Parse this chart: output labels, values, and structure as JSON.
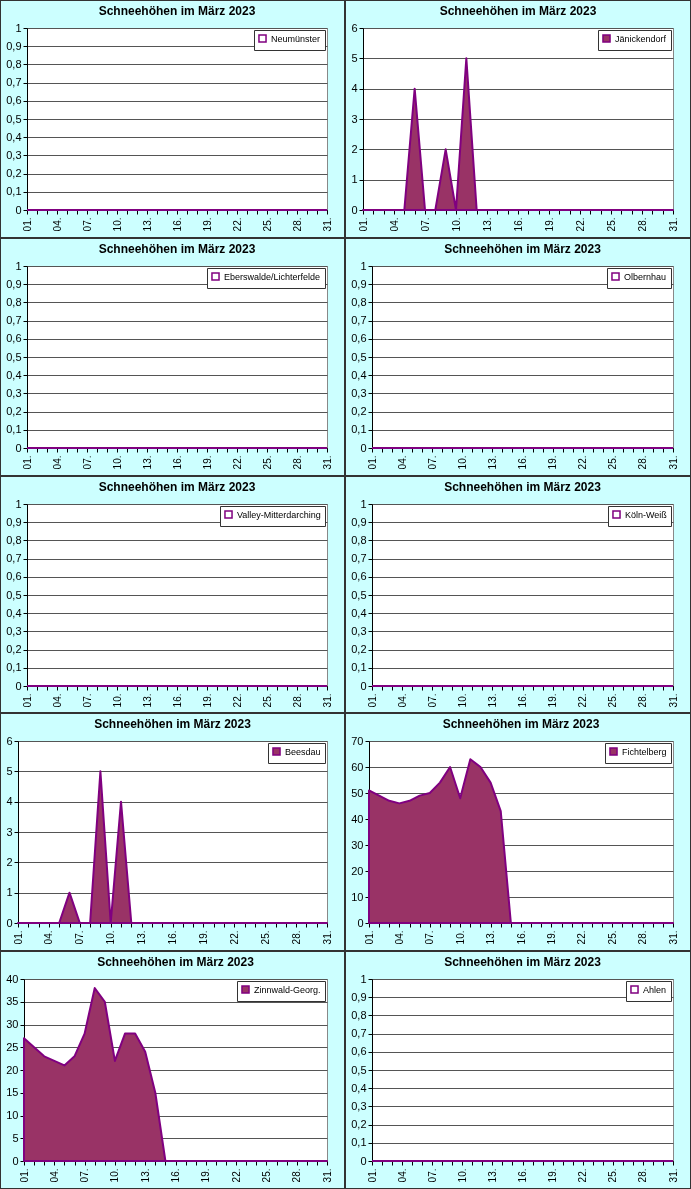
{
  "chart_data": [
    {
      "type": "line",
      "title": "Schneehöhen im März 2023",
      "categories": [
        "01.",
        null,
        null,
        "04.",
        null,
        null,
        "07.",
        null,
        null,
        "10.",
        null,
        null,
        "13.",
        null,
        null,
        "16.",
        null,
        null,
        "19.",
        null,
        null,
        "22.",
        null,
        null,
        "25.",
        null,
        null,
        "28.",
        null,
        null,
        "31."
      ],
      "series": [
        {
          "name": "Neumünster",
          "color": "#800080",
          "values": [
            0,
            0,
            0,
            0,
            0,
            0,
            0,
            0,
            0,
            0,
            0,
            0,
            0,
            0,
            0,
            0,
            0,
            0,
            0,
            0,
            0,
            0,
            0,
            0,
            0,
            0,
            0,
            0,
            0,
            0,
            0
          ]
        }
      ],
      "ylim": [
        0,
        1
      ],
      "yticks": [
        0,
        {
          "value": 0.1,
          "label": "0,1"
        },
        {
          "value": 0.2,
          "label": "0,2"
        },
        {
          "value": 0.3,
          "label": "0,3"
        },
        {
          "value": 0.4,
          "label": "0,4"
        },
        {
          "value": 0.5,
          "label": "0,5"
        },
        {
          "value": 0.6,
          "label": "0,6"
        },
        {
          "value": 0.7,
          "label": "0,7"
        },
        {
          "value": 0.8,
          "label": "0,8"
        },
        {
          "value": 0.9,
          "label": "0,9"
        },
        1
      ],
      "grid": "y",
      "legend": "top right"
    },
    {
      "type": "area",
      "title": "Schneehöhen im März 2023",
      "categories": [
        "01.",
        null,
        null,
        "04.",
        null,
        null,
        "07.",
        null,
        null,
        "10.",
        null,
        null,
        "13.",
        null,
        null,
        "16.",
        null,
        null,
        "19.",
        null,
        null,
        "22.",
        null,
        null,
        "25.",
        null,
        null,
        "28.",
        null,
        null,
        "31."
      ],
      "series": [
        {
          "name": "Jänickendorf",
          "color": "#993366",
          "values": [
            0,
            0,
            0,
            0,
            0,
            4,
            0,
            0,
            2,
            0,
            5,
            0,
            0,
            0,
            0,
            0,
            0,
            0,
            0,
            0,
            0,
            0,
            0,
            0,
            0,
            0,
            0,
            0,
            0,
            0,
            0
          ]
        }
      ],
      "ylim": [
        0,
        6
      ],
      "yticks": [
        0,
        1,
        2,
        3,
        4,
        5,
        6
      ],
      "grid": "y",
      "legend": "top right"
    },
    {
      "type": "line",
      "title": "Schneehöhen im März 2023",
      "categories": [
        "01.",
        null,
        null,
        "04.",
        null,
        null,
        "07.",
        null,
        null,
        "10.",
        null,
        null,
        "13.",
        null,
        null,
        "16.",
        null,
        null,
        "19.",
        null,
        null,
        "22.",
        null,
        null,
        "25.",
        null,
        null,
        "28.",
        null,
        null,
        "31."
      ],
      "series": [
        {
          "name": "Eberswalde/Lichterfelde",
          "color": "#800080",
          "values": [
            0,
            0,
            0,
            0,
            0,
            0,
            0,
            0,
            0,
            0,
            0,
            0,
            0,
            0,
            0,
            0,
            0,
            0,
            0,
            0,
            0,
            0,
            0,
            0,
            0,
            0,
            0,
            0,
            0,
            0,
            0
          ]
        }
      ],
      "ylim": [
        0,
        1
      ],
      "yticks": [
        0,
        {
          "value": 0.1,
          "label": "0,1"
        },
        {
          "value": 0.2,
          "label": "0,2"
        },
        {
          "value": 0.3,
          "label": "0,3"
        },
        {
          "value": 0.4,
          "label": "0,4"
        },
        {
          "value": 0.5,
          "label": "0,5"
        },
        {
          "value": 0.6,
          "label": "0,6"
        },
        {
          "value": 0.7,
          "label": "0,7"
        },
        {
          "value": 0.8,
          "label": "0,8"
        },
        {
          "value": 0.9,
          "label": "0,9"
        },
        1
      ],
      "grid": "y",
      "legend": "top right"
    },
    {
      "type": "line",
      "title": "Schneehöhen im März 2023",
      "categories": [
        "01.",
        null,
        null,
        "04.",
        null,
        null,
        "07.",
        null,
        null,
        "10.",
        null,
        null,
        "13.",
        null,
        null,
        "16.",
        null,
        null,
        "19.",
        null,
        null,
        "22.",
        null,
        null,
        "25.",
        null,
        null,
        "28.",
        null,
        null,
        "31."
      ],
      "series": [
        {
          "name": "Olbernhau",
          "color": "#800080",
          "values": [
            0,
            0,
            0,
            0,
            0,
            0,
            0,
            0,
            0,
            0,
            0,
            0,
            0,
            0,
            0,
            0,
            0,
            0,
            0,
            0,
            0,
            0,
            0,
            0,
            0,
            0,
            0,
            0,
            0,
            0,
            0
          ]
        }
      ],
      "ylim": [
        0,
        1
      ],
      "yticks": [
        0,
        {
          "value": 0.1,
          "label": "0,1"
        },
        {
          "value": 0.2,
          "label": "0,2"
        },
        {
          "value": 0.3,
          "label": "0,3"
        },
        {
          "value": 0.4,
          "label": "0,4"
        },
        {
          "value": 0.5,
          "label": "0,5"
        },
        {
          "value": 0.6,
          "label": "0,6"
        },
        {
          "value": 0.7,
          "label": "0,7"
        },
        {
          "value": 0.8,
          "label": "0,8"
        },
        {
          "value": 0.9,
          "label": "0,9"
        },
        1
      ],
      "grid": "y",
      "legend": "top right"
    },
    {
      "type": "line",
      "title": "Schneehöhen im März 2023",
      "categories": [
        "01.",
        null,
        null,
        "04.",
        null,
        null,
        "07.",
        null,
        null,
        "10.",
        null,
        null,
        "13.",
        null,
        null,
        "16.",
        null,
        null,
        "19.",
        null,
        null,
        "22.",
        null,
        null,
        "25.",
        null,
        null,
        "28.",
        null,
        null,
        "31."
      ],
      "series": [
        {
          "name": "Valley-Mitterdarching",
          "color": "#800080",
          "values": [
            0,
            0,
            0,
            0,
            0,
            0,
            0,
            0,
            0,
            0,
            0,
            0,
            0,
            0,
            0,
            0,
            0,
            0,
            0,
            0,
            0,
            0,
            0,
            0,
            0,
            0,
            0,
            0,
            0,
            0,
            0
          ]
        }
      ],
      "ylim": [
        0,
        1
      ],
      "yticks": [
        0,
        {
          "value": 0.1,
          "label": "0,1"
        },
        {
          "value": 0.2,
          "label": "0,2"
        },
        {
          "value": 0.3,
          "label": "0,3"
        },
        {
          "value": 0.4,
          "label": "0,4"
        },
        {
          "value": 0.5,
          "label": "0,5"
        },
        {
          "value": 0.6,
          "label": "0,6"
        },
        {
          "value": 0.7,
          "label": "0,7"
        },
        {
          "value": 0.8,
          "label": "0,8"
        },
        {
          "value": 0.9,
          "label": "0,9"
        },
        1
      ],
      "grid": "y",
      "legend": "top right"
    },
    {
      "type": "line",
      "title": "Schneehöhen im März 2023",
      "categories": [
        "01.",
        null,
        null,
        "04.",
        null,
        null,
        "07.",
        null,
        null,
        "10.",
        null,
        null,
        "13.",
        null,
        null,
        "16.",
        null,
        null,
        "19.",
        null,
        null,
        "22.",
        null,
        null,
        "25.",
        null,
        null,
        "28.",
        null,
        null,
        "31."
      ],
      "series": [
        {
          "name": "Köln-Weiß",
          "color": "#800080",
          "values": [
            0,
            0,
            0,
            0,
            0,
            0,
            0,
            0,
            0,
            0,
            0,
            0,
            0,
            0,
            0,
            0,
            0,
            0,
            0,
            0,
            0,
            0,
            0,
            0,
            0,
            0,
            0,
            0,
            0,
            0,
            0
          ]
        }
      ],
      "ylim": [
        0,
        1
      ],
      "yticks": [
        0,
        {
          "value": 0.1,
          "label": "0,1"
        },
        {
          "value": 0.2,
          "label": "0,2"
        },
        {
          "value": 0.3,
          "label": "0,3"
        },
        {
          "value": 0.4,
          "label": "0,4"
        },
        {
          "value": 0.5,
          "label": "0,5"
        },
        {
          "value": 0.6,
          "label": "0,6"
        },
        {
          "value": 0.7,
          "label": "0,7"
        },
        {
          "value": 0.8,
          "label": "0,8"
        },
        {
          "value": 0.9,
          "label": "0,9"
        },
        1
      ],
      "grid": "y",
      "legend": "top right"
    },
    {
      "type": "area",
      "title": "Schneehöhen im März 2023",
      "categories": [
        "01.",
        null,
        null,
        "04.",
        null,
        null,
        "07.",
        null,
        null,
        "10.",
        null,
        null,
        "13.",
        null,
        null,
        "16.",
        null,
        null,
        "19.",
        null,
        null,
        "22.",
        null,
        null,
        "25.",
        null,
        null,
        "28.",
        null,
        null,
        "31."
      ],
      "series": [
        {
          "name": "Beesdau",
          "color": "#993366",
          "values": [
            0,
            0,
            0,
            0,
            0,
            1,
            0,
            0,
            5,
            0,
            4,
            0,
            0,
            0,
            0,
            0,
            0,
            0,
            0,
            0,
            0,
            0,
            0,
            0,
            0,
            0,
            0,
            0,
            0,
            0,
            0
          ]
        }
      ],
      "ylim": [
        0,
        6
      ],
      "yticks": [
        0,
        1,
        2,
        3,
        4,
        5,
        6
      ],
      "grid": "y",
      "legend": "top right"
    },
    {
      "type": "area",
      "title": "Schneehöhen im März 2023",
      "categories": [
        "01.",
        null,
        null,
        "04.",
        null,
        null,
        "07.",
        null,
        null,
        "10.",
        null,
        null,
        "13.",
        null,
        null,
        "16.",
        null,
        null,
        "19.",
        null,
        null,
        "22.",
        null,
        null,
        "25.",
        null,
        null,
        "28.",
        null,
        null,
        "31."
      ],
      "series": [
        {
          "name": "Fichtelberg",
          "color": "#993366",
          "values": [
            51,
            49,
            47,
            46,
            47,
            49,
            50,
            54,
            60,
            48,
            63,
            60,
            54,
            43,
            0,
            0,
            0,
            0,
            0,
            0,
            0,
            0,
            0,
            0,
            0,
            0,
            0,
            0,
            0,
            0,
            0
          ]
        }
      ],
      "ylim": [
        0,
        70
      ],
      "yticks": [
        0,
        10,
        20,
        30,
        40,
        50,
        60,
        70
      ],
      "grid": "y",
      "legend": "top right"
    },
    {
      "type": "area",
      "title": "Schneehöhen im März 2023",
      "categories": [
        "01.",
        null,
        null,
        "04.",
        null,
        null,
        "07.",
        null,
        null,
        "10.",
        null,
        null,
        "13.",
        null,
        null,
        "16.",
        null,
        null,
        "19.",
        null,
        null,
        "22.",
        null,
        null,
        "25.",
        null,
        null,
        "28.",
        null,
        null,
        "31."
      ],
      "series": [
        {
          "name": "Zinnwald-Georg.",
          "color": "#993366",
          "values": [
            27,
            25,
            23,
            22,
            21,
            23,
            28,
            38,
            35,
            22,
            28,
            28,
            24,
            15,
            0,
            0,
            0,
            0,
            0,
            0,
            0,
            0,
            0,
            0,
            0,
            0,
            0,
            0,
            0,
            0,
            0
          ]
        }
      ],
      "ylim": [
        0,
        40
      ],
      "yticks": [
        0,
        5,
        10,
        15,
        20,
        25,
        30,
        35,
        40
      ],
      "grid": "y",
      "legend": "top right"
    },
    {
      "type": "line",
      "title": "Schneehöhen im März 2023",
      "categories": [
        "01.",
        null,
        null,
        "04.",
        null,
        null,
        "07.",
        null,
        null,
        "10.",
        null,
        null,
        "13.",
        null,
        null,
        "16.",
        null,
        null,
        "19.",
        null,
        null,
        "22.",
        null,
        null,
        "25.",
        null,
        null,
        "28.",
        null,
        null,
        "31."
      ],
      "series": [
        {
          "name": "Ahlen",
          "color": "#800080",
          "values": [
            0,
            0,
            0,
            0,
            0,
            0,
            0,
            0,
            0,
            0,
            0,
            0,
            0,
            0,
            0,
            0,
            0,
            0,
            0,
            0,
            0,
            0,
            0,
            0,
            0,
            0,
            0,
            0,
            0,
            0,
            0
          ]
        }
      ],
      "ylim": [
        0,
        1
      ],
      "yticks": [
        0,
        {
          "value": 0.1,
          "label": "0,1"
        },
        {
          "value": 0.2,
          "label": "0,2"
        },
        {
          "value": 0.3,
          "label": "0,3"
        },
        {
          "value": 0.4,
          "label": "0,4"
        },
        {
          "value": 0.5,
          "label": "0,5"
        },
        {
          "value": 0.6,
          "label": "0,6"
        },
        {
          "value": 0.7,
          "label": "0,7"
        },
        {
          "value": 0.8,
          "label": "0,8"
        },
        {
          "value": 0.9,
          "label": "0,9"
        },
        1
      ],
      "grid": "y",
      "legend": "top right"
    }
  ]
}
